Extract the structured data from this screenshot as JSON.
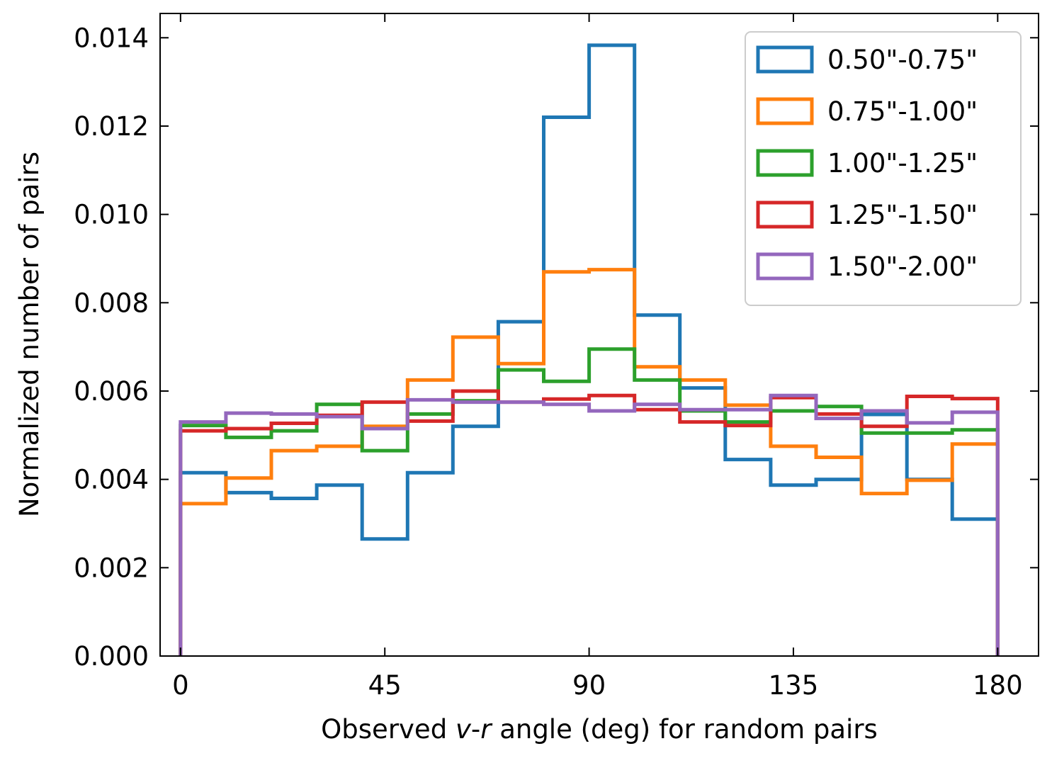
{
  "chart_data": {
    "type": "histogram-step",
    "title": "",
    "xlabel": {
      "prefix": "Observed ",
      "italic1": "v",
      "dash": "-",
      "italic2": "r",
      "suffix": " angle (deg) for random pairs"
    },
    "ylabel": "Normalized number of pairs",
    "xlim": [
      -4.5,
      189
    ],
    "ylim": [
      0,
      0.01455
    ],
    "xticks": [
      0,
      45,
      90,
      135,
      180
    ],
    "xtick_labels": [
      "0",
      "45",
      "90",
      "135",
      "180"
    ],
    "yticks": [
      0,
      0.002,
      0.004,
      0.006,
      0.008,
      0.01,
      0.012,
      0.014
    ],
    "ytick_labels": [
      "0.000",
      "0.002",
      "0.004",
      "0.006",
      "0.008",
      "0.010",
      "0.012",
      "0.014"
    ],
    "bin_edges": [
      0,
      10,
      20,
      30,
      40,
      50,
      60,
      70,
      80,
      90,
      100,
      110,
      120,
      130,
      140,
      150,
      160,
      170,
      180
    ],
    "legend_position": "top-right",
    "series": [
      {
        "name": "0.50\"-0.75\"",
        "color": "#1f77b4",
        "values": [
          0.00415,
          0.0037,
          0.00357,
          0.00387,
          0.00265,
          0.00415,
          0.0052,
          0.00757,
          0.0122,
          0.01383,
          0.00772,
          0.00607,
          0.00445,
          0.00387,
          0.004,
          0.00547,
          0.004,
          0.0031
        ]
      },
      {
        "name": "0.75\"-1.00\"",
        "color": "#ff7f0e",
        "values": [
          0.00345,
          0.00403,
          0.00465,
          0.00475,
          0.0052,
          0.00625,
          0.00722,
          0.00662,
          0.0087,
          0.00875,
          0.00655,
          0.00625,
          0.00568,
          0.00475,
          0.0045,
          0.00368,
          0.00398,
          0.0048
        ]
      },
      {
        "name": "1.00\"-1.25\"",
        "color": "#2ca02c",
        "values": [
          0.00522,
          0.00495,
          0.0051,
          0.0057,
          0.00465,
          0.00548,
          0.00578,
          0.00648,
          0.00622,
          0.00695,
          0.00625,
          0.00555,
          0.0053,
          0.00555,
          0.00565,
          0.00505,
          0.00505,
          0.00512
        ]
      },
      {
        "name": "1.25\"-1.50\"",
        "color": "#d62728",
        "values": [
          0.0051,
          0.00515,
          0.00527,
          0.00545,
          0.00575,
          0.00532,
          0.006,
          0.00575,
          0.00582,
          0.0059,
          0.00558,
          0.0053,
          0.00522,
          0.00585,
          0.00548,
          0.0052,
          0.00588,
          0.00583
        ]
      },
      {
        "name": "1.50\"-2.00\"",
        "color": "#9467bd",
        "values": [
          0.0053,
          0.0055,
          0.00548,
          0.00542,
          0.00515,
          0.0058,
          0.00575,
          0.00575,
          0.0057,
          0.00555,
          0.0057,
          0.00558,
          0.00558,
          0.0059,
          0.00538,
          0.00555,
          0.00528,
          0.00552
        ]
      }
    ]
  }
}
